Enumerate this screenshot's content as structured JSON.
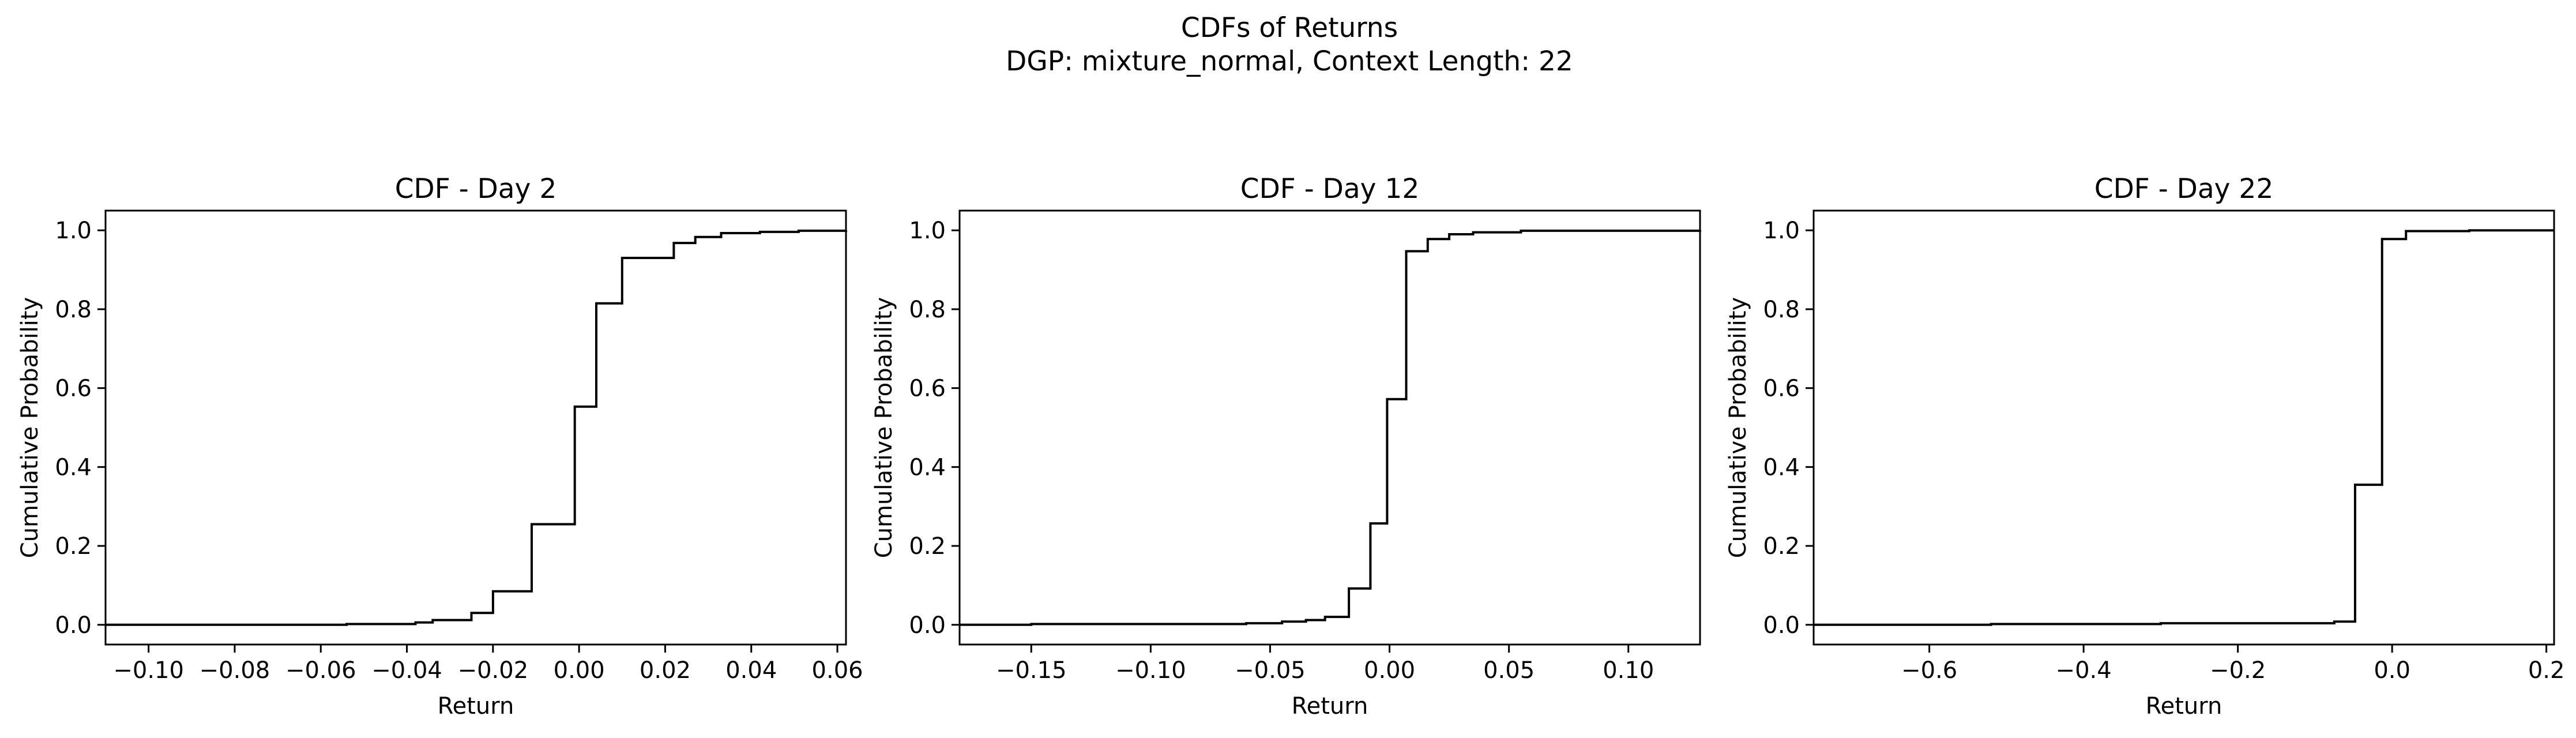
{
  "figure": {
    "suptitle_line1": "CDFs of Returns",
    "suptitle_line2": "DGP: mixture_normal, Context Length: 22"
  },
  "chart_data": [
    {
      "type": "step",
      "title": "CDF - Day 2",
      "xlabel": "Return",
      "ylabel": "Cumulative Probability",
      "xlim": [
        -0.11,
        0.062
      ],
      "ylim": [
        -0.05,
        1.05
      ],
      "xticks": [
        -0.1,
        -0.08,
        -0.06,
        -0.04,
        -0.02,
        0.0,
        0.02,
        0.04,
        0.06
      ],
      "xtick_labels": [
        "−0.10",
        "−0.08",
        "−0.06",
        "−0.04",
        "−0.02",
        "0.00",
        "0.02",
        "0.04",
        "0.06"
      ],
      "yticks": [
        0.0,
        0.2,
        0.4,
        0.6,
        0.8,
        1.0
      ],
      "ytick_labels": [
        "0.0",
        "0.2",
        "0.4",
        "0.6",
        "0.8",
        "1.0"
      ],
      "line_color": "#000000",
      "series": [
        {
          "x": [
            -0.11,
            -0.054,
            -0.038,
            -0.034,
            -0.025,
            -0.02,
            -0.011,
            -0.001,
            0.004,
            0.01,
            0.022,
            0.027,
            0.033,
            0.042,
            0.051,
            0.062
          ],
          "y": [
            0.0,
            0.002,
            0.006,
            0.012,
            0.03,
            0.085,
            0.255,
            0.553,
            0.815,
            0.93,
            0.968,
            0.983,
            0.993,
            0.996,
            0.999,
            1.0
          ]
        }
      ]
    },
    {
      "type": "step",
      "title": "CDF - Day 12",
      "xlabel": "Return",
      "ylabel": "Cumulative Probability",
      "xlim": [
        -0.18,
        0.13
      ],
      "ylim": [
        -0.05,
        1.05
      ],
      "xticks": [
        -0.15,
        -0.1,
        -0.05,
        0.0,
        0.05,
        0.1
      ],
      "xtick_labels": [
        "−0.15",
        "−0.10",
        "−0.05",
        "0.00",
        "0.05",
        "0.10"
      ],
      "yticks": [
        0.0,
        0.2,
        0.4,
        0.6,
        0.8,
        1.0
      ],
      "ytick_labels": [
        "0.0",
        "0.2",
        "0.4",
        "0.6",
        "0.8",
        "1.0"
      ],
      "line_color": "#000000",
      "series": [
        {
          "x": [
            -0.18,
            -0.15,
            -0.06,
            -0.045,
            -0.035,
            -0.027,
            -0.017,
            -0.008,
            -0.001,
            0.007,
            0.016,
            0.025,
            0.035,
            0.055,
            0.13
          ],
          "y": [
            0.0,
            0.002,
            0.004,
            0.008,
            0.012,
            0.02,
            0.092,
            0.257,
            0.572,
            0.947,
            0.978,
            0.99,
            0.995,
            0.999,
            1.0
          ]
        }
      ]
    },
    {
      "type": "step",
      "title": "CDF - Day 22",
      "xlabel": "Return",
      "ylabel": "Cumulative Probability",
      "xlim": [
        -0.75,
        0.21
      ],
      "ylim": [
        -0.05,
        1.05
      ],
      "xticks": [
        -0.6,
        -0.4,
        -0.2,
        0.0,
        0.2
      ],
      "xtick_labels": [
        "−0.6",
        "−0.4",
        "−0.2",
        "0.0",
        "0.2"
      ],
      "yticks": [
        0.0,
        0.2,
        0.4,
        0.6,
        0.8,
        1.0
      ],
      "ytick_labels": [
        "0.0",
        "0.2",
        "0.4",
        "0.6",
        "0.8",
        "1.0"
      ],
      "line_color": "#000000",
      "series": [
        {
          "x": [
            -0.75,
            -0.52,
            -0.3,
            -0.075,
            -0.048,
            -0.013,
            0.018,
            0.1,
            0.21
          ],
          "y": [
            0.0,
            0.002,
            0.004,
            0.008,
            0.355,
            0.978,
            0.998,
            1.0,
            1.0
          ]
        }
      ]
    }
  ]
}
